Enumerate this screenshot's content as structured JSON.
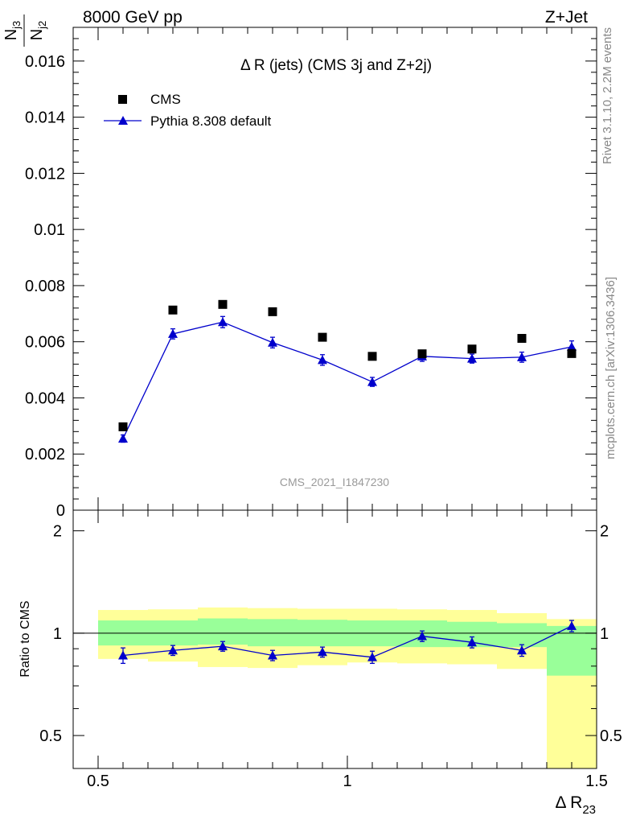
{
  "header": {
    "left": "8000 GeV pp",
    "right": "Z+Jet"
  },
  "side_text": {
    "rivet": "Rivet 3.1.10,  2.2M events",
    "url": "mcplots.cern.ch [arXiv:1306.3436]"
  },
  "chart_data": {
    "type": "line",
    "title": "Δ R (jets) (CMS 3j and Z+2j)",
    "watermark": "CMS_2021_I1847230",
    "xlabel": "Δ R",
    "xlabel_sub": "23",
    "ylabel_num": "N",
    "ylabel_num_sub": "j3",
    "ylabel_den": "N",
    "ylabel_den_sub": "j2",
    "ratio_ylabel": "Ratio to CMS",
    "xlim": [
      0.45,
      1.5
    ],
    "ylim": [
      0,
      0.0172
    ],
    "ratio_ylim": [
      0.4,
      2.3
    ],
    "ratio_scale": "log",
    "x_ticks": [
      0.5,
      1,
      1.5
    ],
    "x_tick_labels": [
      "0.5",
      "1",
      "1.5"
    ],
    "y_ticks": [
      0,
      0.002,
      0.004,
      0.006,
      0.008,
      0.01,
      0.012,
      0.014,
      0.016
    ],
    "y_tick_labels": [
      "0",
      "0.002",
      "0.004",
      "0.006",
      "0.008",
      "0.01",
      "0.012",
      "0.014",
      "0.016"
    ],
    "ratio_ticks": [
      0.5,
      1,
      2
    ],
    "ratio_tick_labels": [
      "0.5",
      "1",
      "2"
    ],
    "legend_position": "top-left",
    "bin_edges": [
      0.5,
      0.6,
      0.7,
      0.8,
      0.9,
      1.0,
      1.1,
      1.2,
      1.3,
      1.4,
      1.5
    ],
    "series": [
      {
        "name": "CMS",
        "marker": "square",
        "color": "#000000",
        "x": [
          0.55,
          0.65,
          0.75,
          0.85,
          0.95,
          1.05,
          1.15,
          1.25,
          1.35,
          1.45
        ],
        "y": [
          0.00297,
          0.00713,
          0.00733,
          0.00707,
          0.00616,
          0.00548,
          0.00557,
          0.00574,
          0.00612,
          0.00558
        ]
      },
      {
        "name": "Pythia 8.308 default",
        "marker": "triangle",
        "color": "#0000cc",
        "x": [
          0.55,
          0.65,
          0.75,
          0.85,
          0.95,
          1.05,
          1.15,
          1.25,
          1.35,
          1.45
        ],
        "y": [
          0.00255,
          0.00628,
          0.0067,
          0.00597,
          0.00535,
          0.00457,
          0.00548,
          0.0054,
          0.00545,
          0.00582
        ],
        "yerr": [
          0.00013,
          0.00018,
          0.0002,
          0.00019,
          0.00019,
          0.00016,
          0.00018,
          0.00016,
          0.00018,
          0.00021
        ]
      }
    ],
    "ratio": {
      "x": [
        0.55,
        0.65,
        0.75,
        0.85,
        0.95,
        1.05,
        1.15,
        1.25,
        1.35,
        1.45
      ],
      "y": [
        0.86,
        0.89,
        0.915,
        0.86,
        0.88,
        0.85,
        0.98,
        0.94,
        0.89,
        1.05
      ],
      "yerr": [
        0.045,
        0.03,
        0.03,
        0.03,
        0.03,
        0.035,
        0.035,
        0.035,
        0.035,
        0.04
      ],
      "band_inner": [
        [
          0.92,
          1.09
        ],
        [
          0.92,
          1.09
        ],
        [
          0.925,
          1.105
        ],
        [
          0.915,
          1.1
        ],
        [
          0.915,
          1.095
        ],
        [
          0.915,
          1.09
        ],
        [
          0.91,
          1.09
        ],
        [
          0.91,
          1.08
        ],
        [
          0.91,
          1.07
        ],
        [
          0.75,
          1.05
        ]
      ],
      "band_outer": [
        [
          0.84,
          1.17
        ],
        [
          0.825,
          1.175
        ],
        [
          0.795,
          1.19
        ],
        [
          0.79,
          1.185
        ],
        [
          0.805,
          1.18
        ],
        [
          0.82,
          1.18
        ],
        [
          0.815,
          1.175
        ],
        [
          0.81,
          1.17
        ],
        [
          0.785,
          1.145
        ],
        [
          0.4,
          1.1
        ]
      ],
      "inner_color": "#99ff99",
      "outer_color": "#ffff99"
    }
  }
}
